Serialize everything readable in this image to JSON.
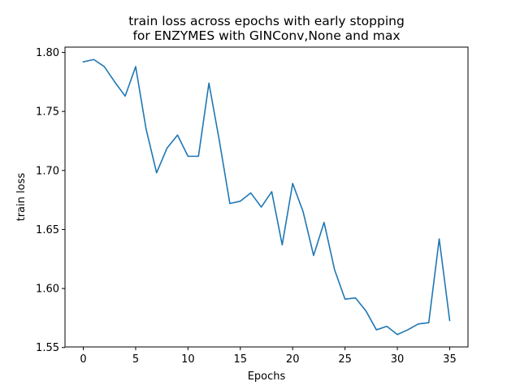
{
  "chart_data": {
    "type": "line",
    "title_lines": [
      "train loss across epochs with early stopping",
      "for ENZYMES with GINConv,None  and max"
    ],
    "xlabel": "Epochs",
    "ylabel": "train loss",
    "xlim": [
      -1.75,
      36.75
    ],
    "ylim": [
      1.5505,
      1.8045
    ],
    "xticks": [
      0,
      5,
      10,
      15,
      20,
      25,
      30,
      35
    ],
    "yticks": [
      1.55,
      1.6,
      1.65,
      1.7,
      1.75,
      1.8
    ],
    "ytick_labels": [
      "1.55",
      "1.60",
      "1.65",
      "1.70",
      "1.75",
      "1.80"
    ],
    "grid": false,
    "series": [
      {
        "color": "#1f77b4",
        "x": [
          0,
          1,
          2,
          3,
          4,
          5,
          6,
          7,
          8,
          9,
          10,
          11,
          12,
          13,
          14,
          15,
          16,
          17,
          18,
          19,
          20,
          21,
          22,
          23,
          24,
          25,
          26,
          27,
          28,
          29,
          30,
          31,
          32,
          33,
          34,
          35
        ],
        "y": [
          1.792,
          1.794,
          1.788,
          1.775,
          1.763,
          1.788,
          1.735,
          1.698,
          1.719,
          1.73,
          1.712,
          1.712,
          1.774,
          1.725,
          1.672,
          1.674,
          1.681,
          1.669,
          1.682,
          1.637,
          1.689,
          1.665,
          1.628,
          1.656,
          1.616,
          1.591,
          1.592,
          1.581,
          1.565,
          1.568,
          1.561,
          1.565,
          1.57,
          1.571,
          1.642,
          1.573
        ]
      }
    ]
  }
}
